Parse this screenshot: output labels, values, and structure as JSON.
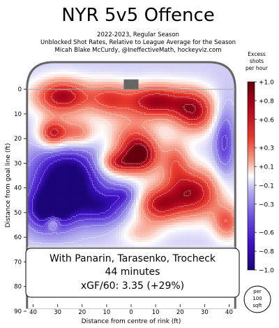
{
  "chart_data": {
    "type": "heatmap",
    "title": "NYR 5v5 Offence",
    "subtitle_lines": [
      "2022-2023, Regular Season",
      "Unblocked Shot Rates, Relative to League Average for the Season",
      "Micah Blake McCurdy, @IneffectiveMath, hockeyviz.com"
    ],
    "xlabel": "Distance from centre of rink (ft)",
    "ylabel": "Distance from goal line (ft)",
    "xlim": [
      43,
      -43
    ],
    "ylim": [
      -5,
      90
    ],
    "x_ticks": [
      "40",
      "30",
      "20",
      "10",
      "0",
      "10",
      "20",
      "30",
      "40"
    ],
    "x_tick_values": [
      40,
      30,
      20,
      10,
      0,
      -10,
      -20,
      -30,
      -40
    ],
    "y_ticks": [
      "0",
      "10",
      "20",
      "30",
      "40",
      "50",
      "60",
      "70",
      "80",
      "90"
    ],
    "y_tick_values": [
      0,
      10,
      20,
      30,
      40,
      50,
      60,
      70,
      80,
      90
    ],
    "colorbar": {
      "title_lines": [
        "Excess",
        "shots",
        "per hour"
      ],
      "tick_labels": [
        "+1.0",
        "+0.8",
        "+0.6",
        "+0.3",
        "+0.1",
        "−0.1",
        "−0.3",
        "−0.6",
        "−0.8",
        "−1.0"
      ],
      "tick_values": [
        1.0,
        0.8,
        0.6,
        0.3,
        0.1,
        -0.1,
        -0.3,
        -0.6,
        -0.8,
        -1.0
      ],
      "range": [
        -1.0,
        1.0
      ]
    },
    "unit_badge_lines": [
      "per",
      "100",
      "sqft"
    ],
    "info_box": {
      "line1": "With Panarin, Tarasenko, Trocheck",
      "line2": "44 minutes",
      "line3": "xGF/60: 3.35 (+29%)"
    },
    "hotspots": [
      {
        "x": 28,
        "y": 3,
        "sx": 8,
        "sy": 5,
        "v": 1.0
      },
      {
        "x": 9,
        "y": 4,
        "sx": 6,
        "sy": 5,
        "v": 0.6
      },
      {
        "x": -10,
        "y": 5,
        "sx": 9,
        "sy": 5,
        "v": 1.0
      },
      {
        "x": -26,
        "y": 9,
        "sx": 6,
        "sy": 6,
        "v": 0.9
      },
      {
        "x": 32,
        "y": 18,
        "sx": 4,
        "sy": 4,
        "v": 0.9
      },
      {
        "x": 22,
        "y": 18,
        "sx": 5,
        "sy": 4,
        "v": 0.6
      },
      {
        "x": 0,
        "y": 20,
        "sx": 7,
        "sy": 6,
        "v": 0.5
      },
      {
        "x": 6,
        "y": 30,
        "sx": 5,
        "sy": 3.5,
        "v": 0.8
      },
      {
        "x": -4,
        "y": 27,
        "sx": 5,
        "sy": 5,
        "v": 1.0
      },
      {
        "x": -18,
        "y": 29,
        "sx": 4,
        "sy": 6,
        "v": 0.5
      },
      {
        "x": -25,
        "y": 42,
        "sx": 8,
        "sy": 7,
        "v": 1.0
      },
      {
        "x": -11,
        "y": 47,
        "sx": 6,
        "sy": 5,
        "v": 0.8
      },
      {
        "x": -39,
        "y": 54,
        "sx": 4,
        "sy": 5,
        "v": 0.6
      },
      {
        "x": 26,
        "y": 36,
        "sx": 10,
        "sy": 9,
        "v": -1.0
      },
      {
        "x": 33,
        "y": 49,
        "sx": 7,
        "sy": 6,
        "v": -0.9
      },
      {
        "x": 32,
        "y": 54,
        "sx": 2,
        "sy": 2,
        "v": 0.55
      },
      {
        "x": 12,
        "y": 48,
        "sx": 7,
        "sy": 5,
        "v": -0.6
      },
      {
        "x": -4,
        "y": 58,
        "sx": 6,
        "sy": 4,
        "v": 0.3
      },
      {
        "x": 3,
        "y": 43,
        "sx": 4,
        "sy": 3,
        "v": -0.4
      },
      {
        "x": -38,
        "y": 21,
        "sx": 3,
        "sy": 10,
        "v": -0.5
      }
    ],
    "field_base": -0.15,
    "field_clip": [
      -1.0,
      1.0
    ]
  }
}
